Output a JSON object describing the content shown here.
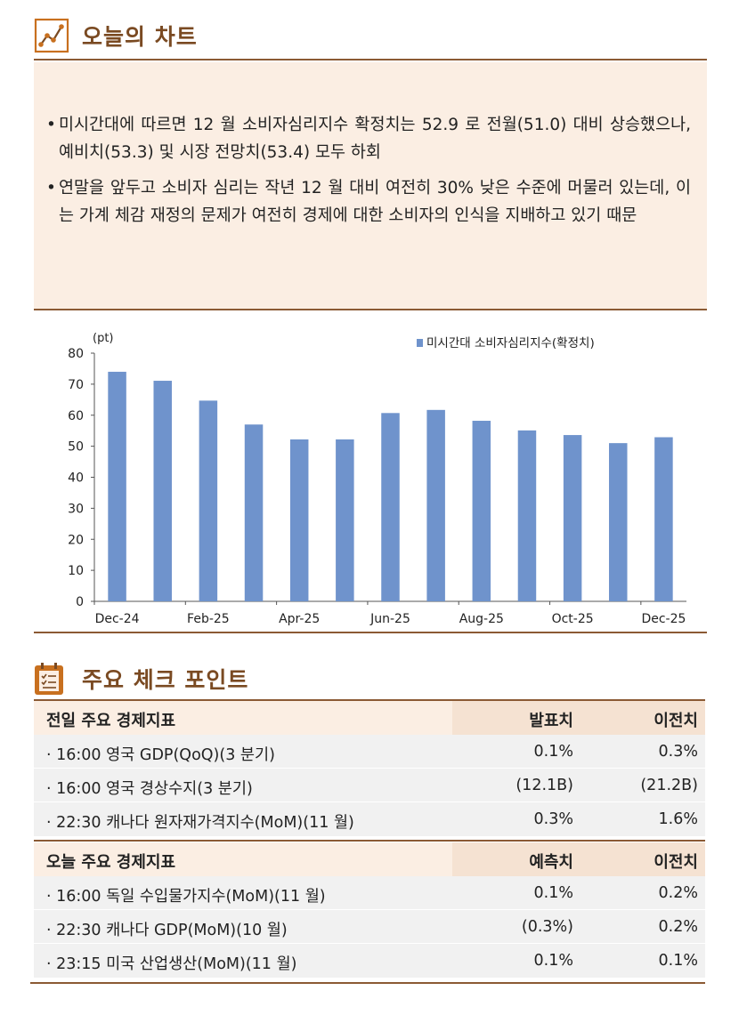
{
  "section1": {
    "title": "오늘의 차트",
    "icon": "line-chart-icon",
    "bullets": [
      "미시간대에 따르면 12 월 소비자심리지수 확정치는 52.9 로 전월(51.0) 대비 상승했으나, 예비치(53.3) 및 시장 전망치(53.4) 모두 하회",
      "연말을 앞두고 소비자 심리는 작년 12 월 대비 여전히 30% 낮은 수준에 머물러 있는데, 이는 가계 체감 재정의 문제가 여전히 경제에 대한 소비자의 인식을 지배하고 있기 때문"
    ]
  },
  "chart_data": {
    "type": "bar",
    "unit_label": "(pt)",
    "legend": "미시간대 소비자심리지수(확정치)",
    "legend_position": "top-right",
    "categories": [
      "Dec-24",
      "Jan-25",
      "Feb-25",
      "Mar-25",
      "Apr-25",
      "May-25",
      "Jun-25",
      "Jul-25",
      "Aug-25",
      "Sep-25",
      "Oct-25",
      "Nov-25",
      "Dec-25"
    ],
    "x_tick_labels": [
      "Dec-24",
      "",
      "Feb-25",
      "",
      "Apr-25",
      "",
      "Jun-25",
      "",
      "Aug-25",
      "",
      "Oct-25",
      "",
      "Dec-25"
    ],
    "values": [
      74.0,
      71.1,
      64.7,
      57.0,
      52.2,
      52.2,
      60.7,
      61.7,
      58.2,
      55.1,
      53.6,
      51.0,
      52.9
    ],
    "ylim": [
      0,
      80
    ],
    "y_ticks": [
      0,
      10,
      20,
      30,
      40,
      50,
      60,
      70,
      80
    ],
    "bar_color": "#6f93cc",
    "grid": false
  },
  "section2": {
    "title": "주요 체크 포인트",
    "icon": "checklist-icon"
  },
  "prev_table": {
    "header": "전일 주요 경제지표",
    "col1": "발표치",
    "col2": "이전치",
    "rows": [
      {
        "item": "· 16:00 영국 GDP(QoQ)(3 분기)",
        "v1": "0.1%",
        "v2": "0.3%"
      },
      {
        "item": "· 16:00 영국 경상수지(3 분기)",
        "v1": "(12.1B)",
        "v2": "(21.2B)"
      },
      {
        "item": "· 22:30 캐나다 원자재가격지수(MoM)(11 월)",
        "v1": "0.3%",
        "v2": "1.6%"
      }
    ]
  },
  "today_table": {
    "header": "오늘 주요 경제지표",
    "col1": "예측치",
    "col2": "이전치",
    "rows": [
      {
        "item": "· 16:00 독일 수입물가지수(MoM)(11 월)",
        "v1": "0.1%",
        "v2": "0.2%"
      },
      {
        "item": "· 22:30 캐나다 GDP(MoM)(10 월)",
        "v1": "(0.3%)",
        "v2": "0.2%"
      },
      {
        "item": "· 23:15 미국 산업생산(MoM)(11 월)",
        "v1": "0.1%",
        "v2": "0.1%"
      }
    ]
  }
}
